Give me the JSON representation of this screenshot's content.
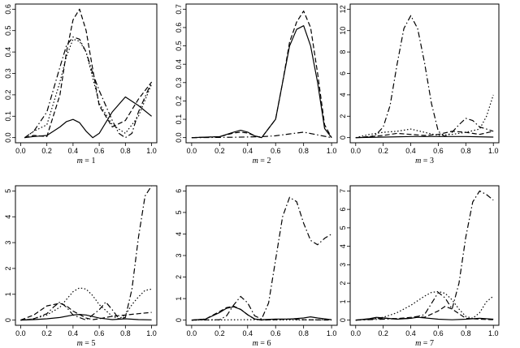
{
  "chart_data": [
    {
      "type": "line",
      "panel_label": {
        "var": "m",
        "eq": " = ",
        "value": "1"
      },
      "xlim": [
        0,
        1
      ],
      "ylim": [
        0,
        0.6
      ],
      "xticks": [
        "0.0",
        "0.2",
        "0.4",
        "0.6",
        "0.8",
        "1.0"
      ],
      "yticks": [
        0,
        0.1,
        0.2,
        0.3,
        0.4,
        0.5,
        0.6
      ],
      "yticklabels": [
        "0.0",
        "0.1",
        "0.2",
        "0.3",
        "0.4",
        "0.5",
        "0.6"
      ],
      "series": [
        {
          "style": "solid",
          "x": [
            0.03,
            0.1,
            0.2,
            0.3,
            0.35,
            0.4,
            0.45,
            0.5,
            0.55,
            0.6,
            0.7,
            0.8,
            0.9,
            1.0
          ],
          "y": [
            0,
            0.005,
            0.01,
            0.05,
            0.075,
            0.085,
            0.07,
            0.03,
            0.0,
            0.02,
            0.12,
            0.19,
            0.15,
            0.1
          ]
        },
        {
          "style": "dashed",
          "x": [
            0.03,
            0.1,
            0.2,
            0.3,
            0.35,
            0.4,
            0.45,
            0.5,
            0.55,
            0.6,
            0.7,
            0.8,
            0.9,
            1.0
          ],
          "y": [
            0,
            0.01,
            0.005,
            0.2,
            0.4,
            0.55,
            0.6,
            0.5,
            0.32,
            0.15,
            0.05,
            0.08,
            0.18,
            0.26
          ]
        },
        {
          "style": "dotdash",
          "x": [
            0.03,
            0.1,
            0.2,
            0.3,
            0.35,
            0.4,
            0.45,
            0.5,
            0.55,
            0.6,
            0.7,
            0.75,
            0.8,
            0.85,
            0.9,
            1.0
          ],
          "y": [
            0,
            0.03,
            0.12,
            0.33,
            0.43,
            0.47,
            0.46,
            0.4,
            0.3,
            0.22,
            0.08,
            0.02,
            0.0,
            0.02,
            0.12,
            0.26
          ]
        },
        {
          "style": "dotted",
          "x": [
            0.03,
            0.1,
            0.2,
            0.3,
            0.35,
            0.4,
            0.45,
            0.5,
            0.55,
            0.6,
            0.7,
            0.8,
            0.9,
            1.0
          ],
          "y": [
            0,
            0.03,
            0.06,
            0.26,
            0.38,
            0.46,
            0.45,
            0.4,
            0.28,
            0.16,
            0.06,
            0.02,
            0.1,
            0.25
          ]
        }
      ]
    },
    {
      "type": "line",
      "panel_label": {
        "var": "m",
        "eq": " = ",
        "value": "2"
      },
      "xlim": [
        0,
        1
      ],
      "ylim": [
        0,
        0.7
      ],
      "xticks": [
        "0.0",
        "0.2",
        "0.4",
        "0.6",
        "0.8",
        "1.0"
      ],
      "yticks": [
        0,
        0.1,
        0.2,
        0.3,
        0.4,
        0.5,
        0.6,
        0.7
      ],
      "yticklabels": [
        "0.0",
        "0.1",
        "0.2",
        "0.3",
        "0.4",
        "0.5",
        "0.6",
        "0.7"
      ],
      "series": [
        {
          "style": "solid",
          "x": [
            0.0,
            0.2,
            0.3,
            0.35,
            0.4,
            0.45,
            0.5,
            0.6,
            0.65,
            0.7,
            0.75,
            0.8,
            0.85,
            0.9,
            0.95,
            1.0
          ],
          "y": [
            0,
            0.005,
            0.03,
            0.04,
            0.03,
            0.01,
            0.0,
            0.1,
            0.3,
            0.5,
            0.59,
            0.61,
            0.5,
            0.3,
            0.05,
            0
          ]
        },
        {
          "style": "dashed",
          "x": [
            0.0,
            0.2,
            0.3,
            0.35,
            0.4,
            0.45,
            0.5,
            0.6,
            0.65,
            0.7,
            0.75,
            0.8,
            0.85,
            0.9,
            0.95,
            1.0
          ],
          "y": [
            0,
            0.005,
            0.025,
            0.03,
            0.025,
            0.01,
            0.0,
            0.1,
            0.3,
            0.52,
            0.63,
            0.69,
            0.6,
            0.35,
            0.07,
            0
          ]
        },
        {
          "style": "dotdash",
          "x": [
            0.0,
            0.3,
            0.5,
            0.6,
            0.7,
            0.8,
            0.9,
            1.0
          ],
          "y": [
            0,
            0.002,
            0.005,
            0.01,
            0.02,
            0.03,
            0.015,
            0
          ]
        }
      ]
    },
    {
      "type": "line",
      "panel_label": {
        "var": "m",
        "eq": " = ",
        "value": "3"
      },
      "xlim": [
        0,
        1
      ],
      "ylim": [
        0,
        12
      ],
      "xticks": [
        "0.0",
        "0.2",
        "0.4",
        "0.6",
        "0.8",
        "1.0"
      ],
      "yticks": [
        0,
        2,
        4,
        6,
        8,
        10,
        12
      ],
      "yticklabels": [
        "0",
        "2",
        "4",
        "6",
        "8",
        "10",
        "12"
      ],
      "series": [
        {
          "style": "solid",
          "x": [
            0.0,
            0.2,
            0.4,
            0.6,
            0.8,
            1.0
          ],
          "y": [
            0,
            0.05,
            0.1,
            0.1,
            0.1,
            0.05
          ]
        },
        {
          "style": "dashed",
          "x": [
            0.0,
            0.2,
            0.3,
            0.4,
            0.5,
            0.6,
            0.7,
            0.8,
            0.9,
            1.0
          ],
          "y": [
            0,
            0.2,
            0.4,
            0.3,
            0.2,
            0.3,
            0.6,
            0.5,
            0.3,
            0.6
          ]
        },
        {
          "style": "dotdash",
          "x": [
            0.0,
            0.1,
            0.15,
            0.2,
            0.25,
            0.3,
            0.35,
            0.4,
            0.45,
            0.5,
            0.55,
            0.6,
            0.65,
            0.7,
            0.75,
            0.8,
            0.85,
            0.9,
            0.95,
            1.0
          ],
          "y": [
            0,
            0.05,
            0.3,
            1.0,
            3.0,
            6.8,
            10.2,
            11.4,
            10.2,
            7.0,
            3.2,
            0.6,
            0.1,
            0.5,
            1.2,
            1.8,
            1.6,
            1.0,
            0.8,
            0.6
          ]
        },
        {
          "style": "dotted",
          "x": [
            0.0,
            0.1,
            0.2,
            0.3,
            0.4,
            0.5,
            0.6,
            0.7,
            0.8,
            0.9,
            0.95,
            1.0
          ],
          "y": [
            0,
            0.3,
            0.5,
            0.6,
            0.8,
            0.5,
            0.2,
            0.3,
            0.5,
            0.8,
            2.0,
            4.0
          ]
        }
      ]
    },
    {
      "type": "line",
      "panel_label": {
        "var": "m",
        "eq": " = ",
        "value": "5"
      },
      "xlim": [
        0,
        1
      ],
      "ylim": [
        0,
        5
      ],
      "xticks": [
        "0.0",
        "0.2",
        "0.4",
        "0.6",
        "0.8",
        "1.0"
      ],
      "yticks": [
        0,
        1,
        2,
        3,
        4,
        5
      ],
      "yticklabels": [
        "0",
        "1",
        "2",
        "3",
        "4",
        "5"
      ],
      "series": [
        {
          "style": "solid",
          "x": [
            0.0,
            0.1,
            0.2,
            0.3,
            0.4,
            0.45,
            0.5,
            0.6,
            0.7,
            0.8,
            0.9,
            1.0
          ],
          "y": [
            0,
            0.02,
            0.05,
            0.1,
            0.2,
            0.22,
            0.2,
            0.08,
            0.02,
            0.05,
            0.02,
            0.01
          ]
        },
        {
          "style": "dashed",
          "x": [
            0.0,
            0.1,
            0.2,
            0.3,
            0.35,
            0.4,
            0.5,
            0.55,
            0.6,
            0.65,
            0.7,
            0.8,
            0.9,
            1.0
          ],
          "y": [
            0,
            0.2,
            0.55,
            0.65,
            0.55,
            0.35,
            0.08,
            0.02,
            0.05,
            0.1,
            0.15,
            0.2,
            0.25,
            0.3
          ]
        },
        {
          "style": "dotdash",
          "x": [
            0.0,
            0.1,
            0.2,
            0.25,
            0.3,
            0.35,
            0.4,
            0.5,
            0.6,
            0.65,
            0.7,
            0.75,
            0.8,
            0.85,
            0.9,
            0.95,
            1.0
          ],
          "y": [
            0,
            0.05,
            0.25,
            0.5,
            0.7,
            0.5,
            0.2,
            0.0,
            0.4,
            0.7,
            0.4,
            0.05,
            0.1,
            1.2,
            3.2,
            4.8,
            5.2
          ]
        },
        {
          "style": "dotted",
          "x": [
            0.0,
            0.1,
            0.2,
            0.3,
            0.35,
            0.4,
            0.45,
            0.5,
            0.55,
            0.6,
            0.7,
            0.75,
            0.8,
            0.85,
            0.9,
            0.95,
            1.0
          ],
          "y": [
            0,
            0.05,
            0.2,
            0.5,
            0.8,
            1.1,
            1.25,
            1.2,
            0.95,
            0.6,
            0.15,
            0.05,
            0.2,
            0.6,
            0.9,
            1.15,
            1.2
          ]
        }
      ]
    },
    {
      "type": "line",
      "panel_label": {
        "var": "m",
        "eq": " = ",
        "value": "6"
      },
      "xlim": [
        0,
        1
      ],
      "ylim": [
        0,
        6
      ],
      "xticks": [
        "0.0",
        "0.2",
        "0.4",
        "0.6",
        "0.8",
        "1.0"
      ],
      "yticks": [
        0,
        1,
        2,
        3,
        4,
        5,
        6
      ],
      "yticklabels": [
        "0",
        "1",
        "2",
        "3",
        "4",
        "5",
        "6"
      ],
      "series": [
        {
          "style": "solid",
          "x": [
            0.0,
            0.1,
            0.2,
            0.25,
            0.3,
            0.35,
            0.4,
            0.45,
            0.5,
            0.6,
            0.7,
            0.8,
            0.85,
            0.9,
            1.0
          ],
          "y": [
            0,
            0.05,
            0.35,
            0.55,
            0.62,
            0.5,
            0.25,
            0.05,
            0.02,
            0.05,
            0.05,
            0.1,
            0.15,
            0.1,
            0.02
          ]
        },
        {
          "style": "dashed",
          "x": [
            0.0,
            0.1,
            0.2,
            0.25,
            0.3,
            0.35,
            0.4,
            0.45,
            0.5,
            0.6,
            0.7,
            0.8,
            0.9,
            1.0
          ],
          "y": [
            0,
            0.05,
            0.4,
            0.58,
            0.65,
            0.5,
            0.25,
            0.05,
            0.0,
            0.02,
            0.05,
            0.02,
            0.01,
            0.0
          ]
        },
        {
          "style": "dotdash",
          "x": [
            0.0,
            0.2,
            0.25,
            0.3,
            0.35,
            0.4,
            0.45,
            0.5,
            0.55,
            0.6,
            0.65,
            0.7,
            0.75,
            0.8,
            0.85,
            0.9,
            0.95,
            1.0
          ],
          "y": [
            0,
            0.02,
            0.2,
            0.7,
            1.1,
            0.8,
            0.2,
            0.05,
            0.8,
            2.8,
            4.8,
            5.7,
            5.5,
            4.5,
            3.7,
            3.5,
            3.8,
            4.0
          ]
        },
        {
          "style": "dotted",
          "x": [
            0.0,
            0.2,
            0.4,
            0.6,
            0.8,
            1.0
          ],
          "y": [
            0,
            0.01,
            0.02,
            0.01,
            0.01,
            0.02
          ]
        }
      ]
    },
    {
      "type": "line",
      "panel_label": {
        "var": "m",
        "eq": " = ",
        "value": "7"
      },
      "xlim": [
        0,
        1
      ],
      "ylim": [
        0,
        7
      ],
      "xticks": [
        "0.0",
        "0.2",
        "0.4",
        "0.6",
        "0.8",
        "1.0"
      ],
      "yticks": [
        0,
        1,
        2,
        3,
        4,
        5,
        6,
        7
      ],
      "yticklabels": [
        "0",
        "1",
        "2",
        "3",
        "4",
        "5",
        "6",
        "7"
      ],
      "series": [
        {
          "style": "solid",
          "x": [
            0.0,
            0.1,
            0.15,
            0.2,
            0.3,
            0.4,
            0.45,
            0.5,
            0.6,
            0.7,
            0.8,
            0.9,
            1.0
          ],
          "y": [
            0,
            0.08,
            0.15,
            0.12,
            0.05,
            0.1,
            0.15,
            0.12,
            0.05,
            0.02,
            0.05,
            0.1,
            0.05
          ]
        },
        {
          "style": "dashed",
          "x": [
            0.0,
            0.1,
            0.2,
            0.3,
            0.4,
            0.45,
            0.5,
            0.6,
            0.65,
            0.7,
            0.8,
            0.9,
            1.0
          ],
          "y": [
            0,
            0.05,
            0.1,
            0.08,
            0.15,
            0.2,
            0.15,
            0.5,
            0.75,
            0.6,
            0.1,
            0.05,
            0.02
          ]
        },
        {
          "style": "dotdash",
          "x": [
            0.0,
            0.2,
            0.4,
            0.5,
            0.55,
            0.6,
            0.65,
            0.7,
            0.75,
            0.8,
            0.85,
            0.9,
            0.95,
            1.0
          ],
          "y": [
            0,
            0.05,
            0.1,
            0.3,
            0.9,
            1.5,
            1.2,
            0.6,
            2.0,
            4.5,
            6.4,
            7.0,
            6.8,
            6.5
          ]
        },
        {
          "style": "dotted",
          "x": [
            0.0,
            0.1,
            0.2,
            0.3,
            0.4,
            0.5,
            0.55,
            0.6,
            0.65,
            0.7,
            0.75,
            0.8,
            0.85,
            0.9,
            0.95,
            1.0
          ],
          "y": [
            0,
            0.05,
            0.15,
            0.4,
            0.8,
            1.3,
            1.5,
            1.55,
            1.45,
            1.1,
            0.6,
            0.2,
            0.1,
            0.4,
            1.0,
            1.3
          ]
        }
      ]
    }
  ]
}
